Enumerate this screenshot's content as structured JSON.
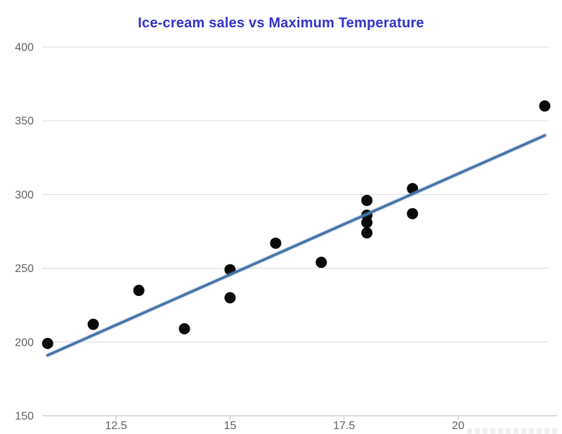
{
  "chart_data": {
    "type": "scatter",
    "title": "Ice-cream sales vs Maximum Temperature",
    "xlabel": "",
    "ylabel": "",
    "series": [
      {
        "name": "Ice-cream sales",
        "x": [
          11,
          12,
          13,
          14,
          15,
          15,
          16,
          17,
          18,
          18,
          18,
          18,
          19,
          19,
          21.9
        ],
        "y": [
          199,
          212,
          235,
          209,
          249,
          230,
          267,
          254,
          296,
          286,
          281,
          274,
          304,
          287,
          360
        ]
      }
    ],
    "trendline": {
      "x1": 11,
      "y1": 191,
      "x2": 21.9,
      "y2": 340
    },
    "xlim": [
      10.88,
      21.97
    ],
    "ylim": [
      150,
      400
    ],
    "x_ticks": [
      "12.5",
      "15",
      "17.5",
      "20"
    ],
    "x_tick_values": [
      12.5,
      15,
      17.5,
      20
    ],
    "y_ticks": [
      "150",
      "200",
      "250",
      "300",
      "350",
      "400"
    ],
    "y_tick_values": [
      150,
      200,
      250,
      300,
      350,
      400
    ],
    "grid": "horizontal-only",
    "legend": "none",
    "colors": {
      "title": "#3232cb",
      "point": "#0a0a0a",
      "trend_line": "#4573a7",
      "trend_halo": "rgba(111,143,183,0.28)",
      "gridline": "#d9d9d9",
      "axis_line": "#c9d2de",
      "tick_mark": "#c0c8d2",
      "tick_label": "#606060",
      "background": "#ffffff"
    },
    "marker_radius_px": 8
  }
}
